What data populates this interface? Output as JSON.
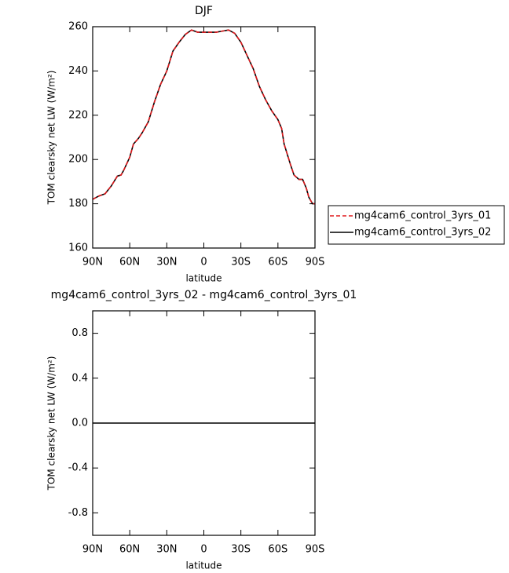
{
  "chart_data": [
    {
      "type": "line",
      "title": "DJF",
      "xlabel": "latitude",
      "ylabel": "TOM clearsky net LW (W/m²)",
      "x": [
        90,
        85,
        80,
        75,
        70,
        67,
        65,
        60,
        57,
        53,
        50,
        45,
        40,
        35,
        30,
        25,
        20,
        15,
        10,
        5,
        0,
        -5,
        -10,
        -15,
        -20,
        -25,
        -30,
        -35,
        -40,
        -45,
        -50,
        -55,
        -60,
        -63,
        -65,
        -70,
        -73,
        -77,
        -80,
        -83,
        -85,
        -88,
        -90
      ],
      "series": [
        {
          "name": "mg4cam6_control_3yrs_01",
          "color": "#e0191c",
          "linestyle": "dashed",
          "values": [
            182,
            183.5,
            184.5,
            188,
            192.5,
            193,
            195,
            201,
            207,
            209.5,
            212,
            217,
            226,
            234,
            240,
            249,
            253,
            256.5,
            258.5,
            257.5,
            257.5,
            257.5,
            257.5,
            258,
            258.5,
            257,
            253,
            247,
            241,
            233,
            227,
            222,
            218,
            214,
            207,
            198,
            193,
            191,
            191,
            187,
            183,
            180,
            180
          ]
        },
        {
          "name": "mg4cam6_control_3yrs_02",
          "color": "#000000",
          "linestyle": "solid",
          "values": [
            182,
            183.5,
            184.5,
            188,
            192.5,
            193,
            195,
            201,
            207,
            209.5,
            212,
            217,
            226,
            234,
            240,
            249,
            253,
            256.5,
            258.5,
            257.5,
            257.5,
            257.5,
            257.5,
            258,
            258.5,
            257,
            253,
            247,
            241,
            233,
            227,
            222,
            218,
            214,
            207,
            198,
            193,
            191,
            191,
            187,
            183,
            180,
            180
          ]
        }
      ],
      "xlim": [
        90,
        -90
      ],
      "xticks": [
        {
          "value": 90,
          "label": "90N"
        },
        {
          "value": 60,
          "label": "60N"
        },
        {
          "value": 30,
          "label": "30N"
        },
        0,
        {
          "value": -30,
          "label": "30S"
        },
        {
          "value": -60,
          "label": "60S"
        },
        {
          "value": -90,
          "label": "90S"
        }
      ],
      "ylim": [
        160,
        260
      ],
      "yticks": [
        160,
        180,
        200,
        220,
        240,
        260
      ],
      "legend": "right"
    },
    {
      "type": "line",
      "title": "mg4cam6_control_3yrs_02 - mg4cam6_control_3yrs_01",
      "xlabel": "latitude",
      "ylabel": "TOM clearsky net LW (W/m²)",
      "x": [
        90,
        -90
      ],
      "series": [
        {
          "color": "#000000",
          "linestyle": "solid",
          "values": [
            0,
            0
          ]
        }
      ],
      "xlim": [
        90,
        -90
      ],
      "xticks": [
        {
          "value": 90,
          "label": "90N"
        },
        {
          "value": 60,
          "label": "60N"
        },
        {
          "value": 30,
          "label": "30N"
        },
        0,
        {
          "value": -30,
          "label": "30S"
        },
        {
          "value": -60,
          "label": "60S"
        },
        {
          "value": -90,
          "label": "90S"
        }
      ],
      "ylim": [
        -1,
        1
      ],
      "yticks": [
        -0.8,
        -0.4,
        {
          "value": 0,
          "label": "0.0"
        },
        0.4,
        0.8
      ]
    }
  ]
}
